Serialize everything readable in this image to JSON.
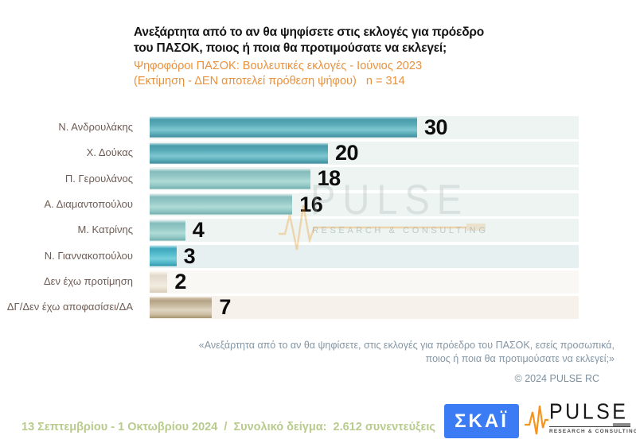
{
  "header": {
    "title_line1": "Ανεξάρτητα από το αν θα ψηφίσετε στις εκλογές για πρόεδρο",
    "title_line2": "του ΠΑΣΟΚ, ποιος ή ποια θα προτιμούσατε να εκλεγεί;",
    "subtitle_line1": "Ψηφοφόροι ΠΑΣΟΚ: Βουλευτικές εκλογές - Ιούνιος 2023",
    "subtitle_line2": "(Εκτίμηση - ΔΕΝ αποτελεί πρόθεση ψήφου)   n = 314"
  },
  "chart_data": {
    "type": "bar",
    "orientation": "horizontal",
    "title": "Ανεξάρτητα από το αν θα ψηφίσετε στις εκλογές για πρόεδρο του ΠΑΣΟΚ, ποιος ή ποια θα προτιμούσατε να εκλεγεί;",
    "categories": [
      "Ν. Ανδρουλάκης",
      "Χ. Δούκας",
      "Π. Γερουλάνος",
      "Α. Διαμαντοπούλου",
      "Μ. Κατρίνης",
      "Ν. Γιαννακοπούλου",
      "Δεν έχω προτίμηση",
      "ΔΓ/Δεν έχω αποφασίσει/ΔΑ"
    ],
    "values": [
      30,
      20,
      18,
      16,
      4,
      3,
      2,
      7
    ],
    "value_suffix": "",
    "xlim": [
      0,
      48
    ],
    "grid": false,
    "legend": false,
    "data_labels": true,
    "bar_styles": [
      "teal-dark",
      "teal-dark",
      "teal-light",
      "teal-light",
      "teal-light",
      "cyan",
      "cream",
      "tan"
    ]
  },
  "watermark": {
    "brand": "PULSE",
    "tagline": "RESEARCH & CONSULTING"
  },
  "footer": {
    "quote_line1": "«Ανεξάρτητα από το αν θα ψηφίσετε, στις εκλογές για πρόεδρο του ΠΑΣΟΚ, εσείς προσωπικά,",
    "quote_line2": "ποιος ή ποια θα προτιμούσατε να εκλεγεί;»",
    "copyright": "© 2024 PULSE RC",
    "fieldwork": "13 Σεπτεμβρίου - 1 Οκτωβρίου 2024  /  Συνολικό δείγμα:  2.612 συνεντεύξεις"
  },
  "logos": {
    "skai": "ΣΚΑΪ",
    "pulse_brand": "PULSE",
    "pulse_tagline": "RESEARCH & CONSULTING"
  },
  "colors": {
    "subtitle_orange": "#e8923f",
    "title_black": "#141414",
    "label_brown": "#6e5c55",
    "value_black": "#0d0d0d",
    "quote_gray": "#8496a4",
    "copyright_gray": "#7e909e",
    "fieldwork_green": "#b8cb8d",
    "skai_blue": "#3b7cf4",
    "pulse_orange": "#f7941d",
    "bar_teal_dark": "#57a9b7",
    "bar_teal_light": "#95c9c7",
    "bar_cyan": "#54bccd",
    "bar_cream": "#ece5d8",
    "bar_tan": "#c9bba2"
  }
}
